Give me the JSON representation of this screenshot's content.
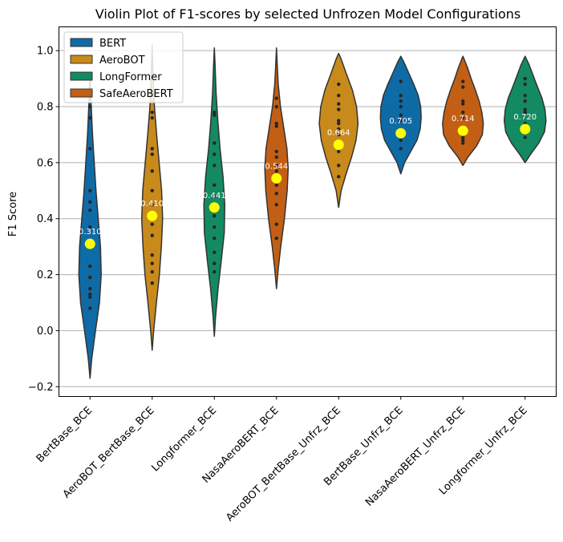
{
  "chart_data": {
    "type": "violin",
    "title": "Violin Plot of F1-scores by selected Unfrozen Model Configurations",
    "xlabel": "",
    "ylabel": "F1 Score",
    "ylim": [
      -0.235,
      1.085
    ],
    "yticks": [
      -0.2,
      0.0,
      0.2,
      0.4,
      0.6,
      0.8,
      1.0
    ],
    "ytick_labels": [
      "−0.2",
      "0.0",
      "0.2",
      "0.4",
      "0.6",
      "0.8",
      "1.0"
    ],
    "grid": "horizontal",
    "legend_position": "top-left",
    "legend": [
      {
        "name": "BERT",
        "color": "#0f6ba6"
      },
      {
        "name": "AeroBOT",
        "color": "#c98a1c"
      },
      {
        "name": "LongFormer",
        "color": "#138a62"
      },
      {
        "name": "SafeAeroBERT",
        "color": "#c25f14"
      }
    ],
    "categories": [
      {
        "label": "BertBase_BCE",
        "color": "#0f6ba6",
        "mean": 0.31,
        "mean_label": "0.310",
        "range": [
          -0.17,
          0.92
        ],
        "density": [
          [
            -0.17,
            0.0
          ],
          [
            -0.1,
            0.07
          ],
          [
            0.0,
            0.22
          ],
          [
            0.1,
            0.38
          ],
          [
            0.2,
            0.45
          ],
          [
            0.3,
            0.42
          ],
          [
            0.4,
            0.33
          ],
          [
            0.5,
            0.24
          ],
          [
            0.6,
            0.17
          ],
          [
            0.7,
            0.1
          ],
          [
            0.8,
            0.05
          ],
          [
            0.92,
            0.0
          ]
        ],
        "points": [
          0.08,
          0.12,
          0.13,
          0.15,
          0.19,
          0.23,
          0.31,
          0.37,
          0.43,
          0.46,
          0.5,
          0.65,
          0.76,
          0.8
        ]
      },
      {
        "label": "AeroBOT_BertBase_BCE",
        "color": "#c98a1c",
        "mean": 0.41,
        "mean_label": "0.410",
        "range": [
          -0.07,
          1.02
        ],
        "density": [
          [
            -0.07,
            0.0
          ],
          [
            0.0,
            0.06
          ],
          [
            0.1,
            0.17
          ],
          [
            0.2,
            0.29
          ],
          [
            0.3,
            0.37
          ],
          [
            0.4,
            0.42
          ],
          [
            0.5,
            0.38
          ],
          [
            0.6,
            0.28
          ],
          [
            0.7,
            0.18
          ],
          [
            0.8,
            0.09
          ],
          [
            0.9,
            0.04
          ],
          [
            1.02,
            0.0
          ]
        ],
        "points": [
          0.17,
          0.21,
          0.24,
          0.27,
          0.34,
          0.38,
          0.41,
          0.45,
          0.5,
          0.57,
          0.63,
          0.65,
          0.76,
          0.78
        ]
      },
      {
        "label": "Longformer_BCE",
        "color": "#138a62",
        "mean": 0.44,
        "mean_label": "0.441",
        "range": [
          -0.02,
          1.01
        ],
        "density": [
          [
            -0.02,
            0.0
          ],
          [
            0.05,
            0.05
          ],
          [
            0.15,
            0.15
          ],
          [
            0.25,
            0.28
          ],
          [
            0.35,
            0.4
          ],
          [
            0.45,
            0.42
          ],
          [
            0.55,
            0.35
          ],
          [
            0.65,
            0.23
          ],
          [
            0.75,
            0.14
          ],
          [
            0.85,
            0.07
          ],
          [
            0.95,
            0.03
          ],
          [
            1.01,
            0.0
          ]
        ],
        "points": [
          0.21,
          0.24,
          0.28,
          0.33,
          0.37,
          0.41,
          0.44,
          0.48,
          0.52,
          0.59,
          0.63,
          0.67,
          0.77,
          0.78
        ]
      },
      {
        "label": "NasaAeroBERT_BCE",
        "color": "#c25f14",
        "mean": 0.544,
        "mean_label": "0.544",
        "range": [
          0.15,
          1.01
        ],
        "density": [
          [
            0.15,
            0.0
          ],
          [
            0.22,
            0.07
          ],
          [
            0.3,
            0.17
          ],
          [
            0.4,
            0.32
          ],
          [
            0.5,
            0.43
          ],
          [
            0.58,
            0.47
          ],
          [
            0.65,
            0.42
          ],
          [
            0.72,
            0.3
          ],
          [
            0.8,
            0.16
          ],
          [
            0.88,
            0.07
          ],
          [
            0.95,
            0.03
          ],
          [
            1.01,
            0.0
          ]
        ],
        "points": [
          0.33,
          0.38,
          0.45,
          0.49,
          0.52,
          0.57,
          0.59,
          0.62,
          0.64,
          0.73,
          0.74,
          0.8,
          0.83
        ]
      },
      {
        "label": "AeroBOT_BertBase_Unfrz_BCE",
        "color": "#c98a1c",
        "mean": 0.664,
        "mean_label": "0.664",
        "range": [
          0.44,
          0.99
        ],
        "density": [
          [
            0.44,
            0.0
          ],
          [
            0.5,
            0.1
          ],
          [
            0.56,
            0.3
          ],
          [
            0.62,
            0.52
          ],
          [
            0.68,
            0.7
          ],
          [
            0.74,
            0.78
          ],
          [
            0.8,
            0.72
          ],
          [
            0.86,
            0.55
          ],
          [
            0.92,
            0.3
          ],
          [
            0.97,
            0.1
          ],
          [
            0.99,
            0.0
          ]
        ],
        "points": [
          0.55,
          0.59,
          0.64,
          0.67,
          0.7,
          0.72,
          0.74,
          0.75,
          0.79,
          0.81,
          0.84,
          0.88
        ]
      },
      {
        "label": "BertBase_Unfrz_BCE",
        "color": "#0f6ba6",
        "mean": 0.705,
        "mean_label": "0.705",
        "range": [
          0.56,
          0.98
        ],
        "density": [
          [
            0.56,
            0.0
          ],
          [
            0.6,
            0.15
          ],
          [
            0.64,
            0.4
          ],
          [
            0.68,
            0.65
          ],
          [
            0.72,
            0.78
          ],
          [
            0.76,
            0.82
          ],
          [
            0.8,
            0.8
          ],
          [
            0.84,
            0.7
          ],
          [
            0.88,
            0.52
          ],
          [
            0.92,
            0.32
          ],
          [
            0.96,
            0.12
          ],
          [
            0.98,
            0.0
          ]
        ],
        "points": [
          0.65,
          0.68,
          0.7,
          0.71,
          0.75,
          0.77,
          0.8,
          0.82,
          0.84,
          0.89
        ]
      },
      {
        "label": "NasaAeroBERT_Unfrz_BCE",
        "color": "#c25f14",
        "mean": 0.714,
        "mean_label": "0.714",
        "range": [
          0.59,
          0.98
        ],
        "density": [
          [
            0.59,
            0.0
          ],
          [
            0.62,
            0.2
          ],
          [
            0.66,
            0.55
          ],
          [
            0.7,
            0.78
          ],
          [
            0.74,
            0.82
          ],
          [
            0.78,
            0.76
          ],
          [
            0.82,
            0.65
          ],
          [
            0.86,
            0.5
          ],
          [
            0.9,
            0.33
          ],
          [
            0.94,
            0.18
          ],
          [
            0.98,
            0.0
          ]
        ],
        "points": [
          0.67,
          0.68,
          0.69,
          0.7,
          0.72,
          0.76,
          0.78,
          0.81,
          0.82,
          0.87,
          0.89
        ]
      },
      {
        "label": "Longformer_Unfrz_BCE",
        "color": "#138a62",
        "mean": 0.72,
        "mean_label": "0.720",
        "range": [
          0.6,
          0.98
        ],
        "density": [
          [
            0.6,
            0.0
          ],
          [
            0.63,
            0.22
          ],
          [
            0.67,
            0.55
          ],
          [
            0.71,
            0.78
          ],
          [
            0.75,
            0.84
          ],
          [
            0.79,
            0.8
          ],
          [
            0.83,
            0.68
          ],
          [
            0.87,
            0.5
          ],
          [
            0.91,
            0.33
          ],
          [
            0.95,
            0.16
          ],
          [
            0.98,
            0.0
          ]
        ],
        "points": [
          0.69,
          0.71,
          0.72,
          0.74,
          0.78,
          0.79,
          0.82,
          0.84,
          0.88,
          0.9
        ]
      }
    ],
    "mean_marker_color": "#ffff00"
  }
}
